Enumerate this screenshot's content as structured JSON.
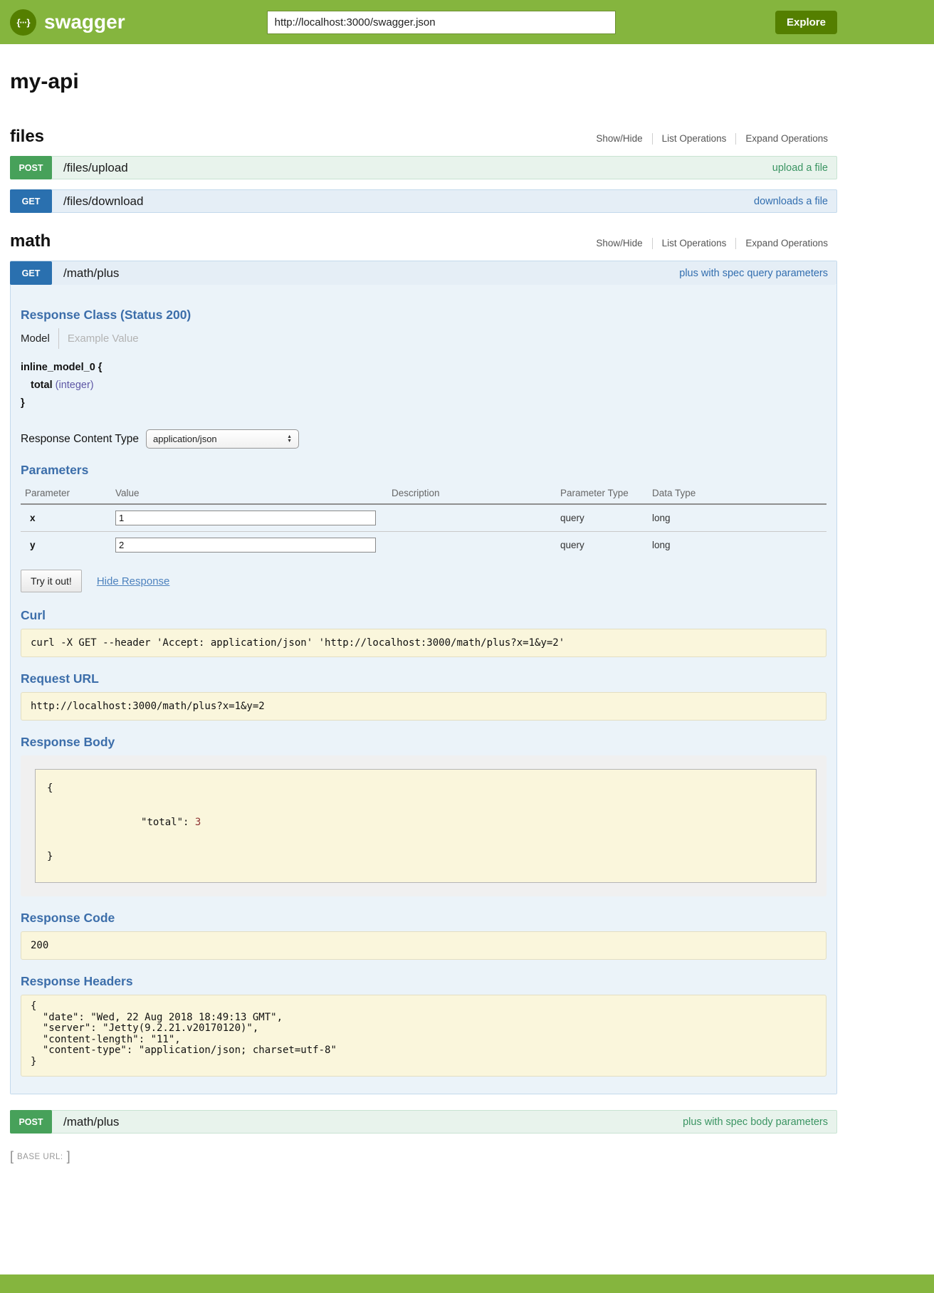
{
  "header": {
    "brand": "swagger",
    "logo_glyph": "{···}",
    "url_input": "http://localhost:3000/swagger.json",
    "explore_label": "Explore"
  },
  "title": "my-api",
  "files_section": {
    "title": "files",
    "controls": {
      "show_hide": "Show/Hide",
      "list_ops": "List Operations",
      "expand_ops": "Expand Operations"
    },
    "operations": [
      {
        "method": "POST",
        "path": "/files/upload",
        "summary": "upload a file"
      },
      {
        "method": "GET",
        "path": "/files/download",
        "summary": "downloads a file"
      }
    ]
  },
  "math_section": {
    "title": "math",
    "controls": {
      "show_hide": "Show/Hide",
      "list_ops": "List Operations",
      "expand_ops": "Expand Operations"
    },
    "get_operation": {
      "method": "GET",
      "path": "/math/plus",
      "summary": "plus with spec query parameters",
      "response_class": {
        "heading": "Response Class (Status 200)",
        "tab_model": "Model",
        "tab_example": "Example Value",
        "model_open": "inline_model_0 {",
        "prop_name": "total",
        "prop_type": "(integer)",
        "model_close": "}"
      },
      "response_content_type": {
        "label": "Response Content Type",
        "value": "application/json",
        "arrows": [
          "▲",
          "▼"
        ]
      },
      "parameters": {
        "heading": "Parameters",
        "columns": [
          "Parameter",
          "Value",
          "Description",
          "Parameter Type",
          "Data Type"
        ],
        "rows": [
          {
            "name": "x",
            "value": "1",
            "description": "",
            "param_type": "query",
            "data_type": "long"
          },
          {
            "name": "y",
            "value": "2",
            "description": "",
            "param_type": "query",
            "data_type": "long"
          }
        ]
      },
      "try_label": "Try it out!",
      "hide_response_label": "Hide Response",
      "curl": {
        "heading": "Curl",
        "command": "curl -X GET --header 'Accept: application/json' 'http://localhost:3000/math/plus?x=1&y=2'"
      },
      "request_url": {
        "heading": "Request URL",
        "value": "http://localhost:3000/math/plus?x=1&y=2"
      },
      "response_body": {
        "heading": "Response Body",
        "open": "{",
        "key": "\"total\": ",
        "value": "3",
        "close": "}"
      },
      "response_code": {
        "heading": "Response Code",
        "value": "200"
      },
      "response_headers": {
        "heading": "Response Headers",
        "value": "{\n  \"date\": \"Wed, 22 Aug 2018 18:49:13 GMT\",\n  \"server\": \"Jetty(9.2.21.v20170120)\",\n  \"content-length\": \"11\",\n  \"content-type\": \"application/json; charset=utf-8\"\n}"
      }
    },
    "post_operation": {
      "method": "POST",
      "path": "/math/plus",
      "summary": "plus with spec body parameters"
    }
  },
  "footer": {
    "open_bracket": "[",
    "base_url_label": "BASE URL:",
    "close_bracket": "]"
  },
  "colors": {
    "header_green": "#85b53e",
    "logo_dark_green": "#547f00",
    "post_green": "#47a15a",
    "get_blue": "#2a70af",
    "post_row_bg": "#e8f3ec",
    "get_row_bg": "#e5eef6",
    "panel_bg": "#ebf3f9",
    "heading_blue": "#3c6eaa",
    "code_bg_cream": "#faf6dc",
    "summary_green": "#3a9462",
    "summary_blue": "#326eaf",
    "prop_type_purple": "#5e57a5",
    "number_red": "#8f3333"
  }
}
